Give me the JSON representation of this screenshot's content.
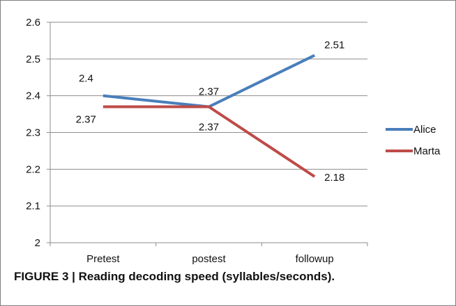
{
  "caption": "FIGURE 3 | Reading decoding speed (syllables/seconds).",
  "chart_data": {
    "type": "line",
    "categories": [
      "Pretest",
      "postest",
      "followup"
    ],
    "series": [
      {
        "name": "Alice",
        "values": [
          2.4,
          2.37,
          2.51
        ],
        "color": "#4a7ebb",
        "labels": [
          "2.4",
          "2.37",
          "2.51"
        ]
      },
      {
        "name": "Marta",
        "values": [
          2.37,
          2.37,
          2.18
        ],
        "color": "#be4b48",
        "labels": [
          "2.37",
          "2.37",
          "2.18"
        ]
      }
    ],
    "yticks": [
      "2",
      "2.1",
      "2.2",
      "2.3",
      "2.4",
      "2.5",
      "2.6"
    ],
    "ylim": [
      2,
      2.6
    ],
    "grid": true,
    "legend": "right"
  }
}
